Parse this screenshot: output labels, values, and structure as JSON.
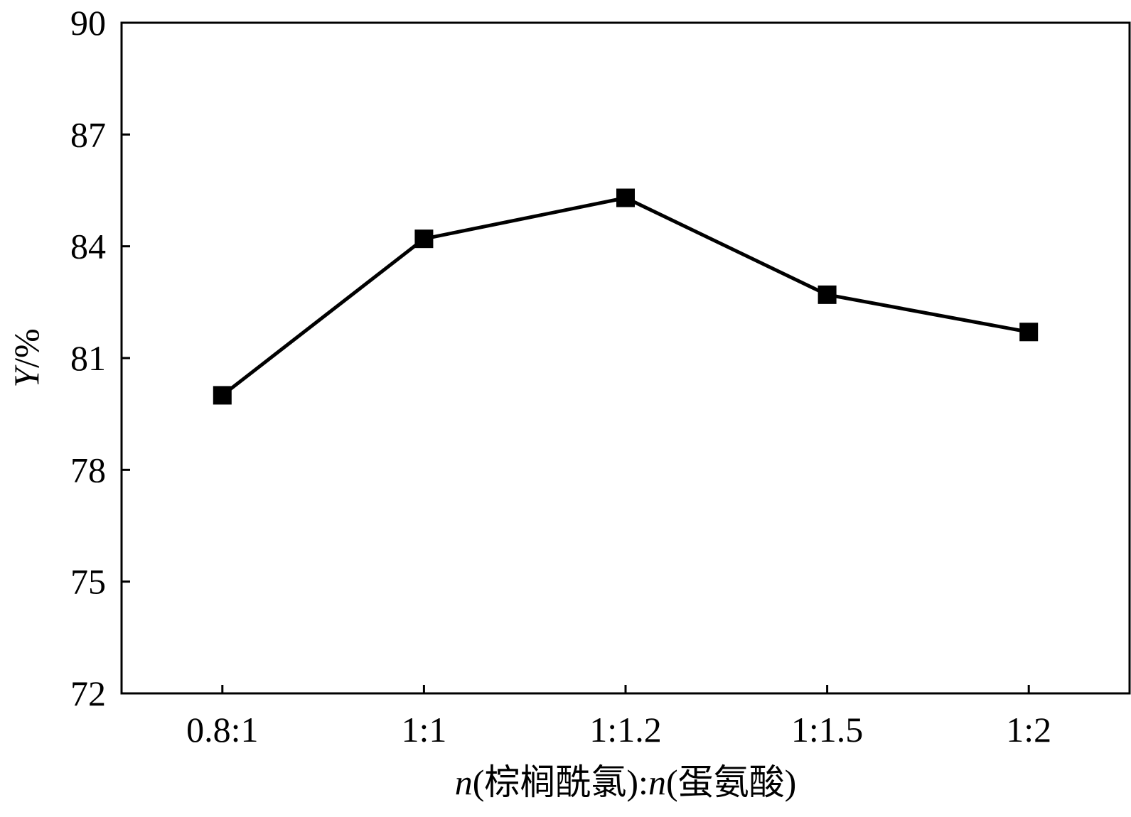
{
  "chart_data": {
    "type": "line",
    "title": "",
    "xlabel_parts": [
      {
        "text": "n",
        "italic": true
      },
      {
        "text": "(棕榈酰氯):",
        "italic": false
      },
      {
        "text": "n",
        "italic": true
      },
      {
        "text": "(蛋氨酸)",
        "italic": false
      }
    ],
    "ylabel_parts": [
      {
        "text": "Y",
        "italic": true
      },
      {
        "text": "/%",
        "italic": false
      }
    ],
    "categories": [
      "0.8:1",
      "1:1",
      "1:1.2",
      "1:1.5",
      "1:2"
    ],
    "series": [
      {
        "values": [
          80.0,
          84.2,
          85.3,
          82.7,
          81.7
        ],
        "color": "#000000",
        "marker": "square"
      }
    ],
    "ylim": [
      72,
      90
    ],
    "yticks": [
      72,
      75,
      78,
      81,
      84,
      87,
      90
    ],
    "grid": false,
    "legend": "none"
  }
}
